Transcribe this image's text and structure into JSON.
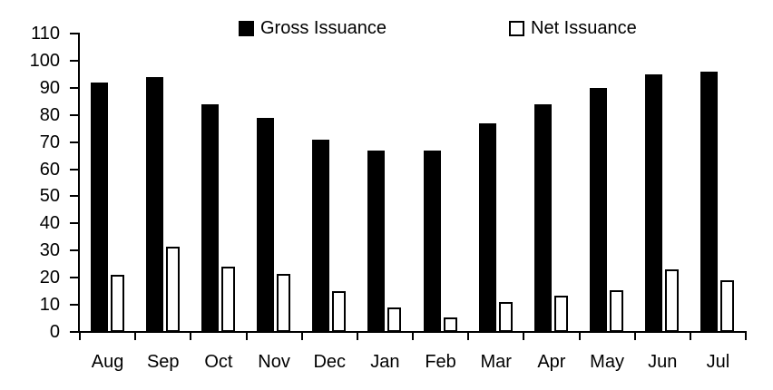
{
  "chart_data": {
    "type": "bar",
    "title": "",
    "xlabel": "",
    "ylabel": "",
    "categories": [
      "Aug",
      "Sep",
      "Oct",
      "Nov",
      "Dec",
      "Jan",
      "Feb",
      "Mar",
      "Apr",
      "May",
      "Jun",
      "Jul"
    ],
    "series": [
      {
        "name": "Gross Issuance",
        "fill": "#000000",
        "values": [
          92,
          94,
          84,
          79,
          71,
          67,
          67,
          77,
          84,
          90,
          95,
          96
        ]
      },
      {
        "name": "Net Issuance",
        "fill": "#ffffff",
        "stroke": "#000000",
        "values": [
          21,
          31.5,
          24,
          21.5,
          15,
          9,
          5.5,
          11,
          13.5,
          15.5,
          23,
          19
        ]
      }
    ],
    "ylim": [
      0,
      110
    ],
    "yticks": [
      0,
      10,
      20,
      30,
      40,
      50,
      60,
      70,
      80,
      90,
      100,
      110
    ],
    "grid": false,
    "legend_position": "top"
  },
  "colors": {
    "background": "#ffffff",
    "axis": "#000000",
    "text": "#000000",
    "gross_fill": "#000000",
    "net_fill": "#ffffff",
    "net_stroke": "#000000"
  }
}
